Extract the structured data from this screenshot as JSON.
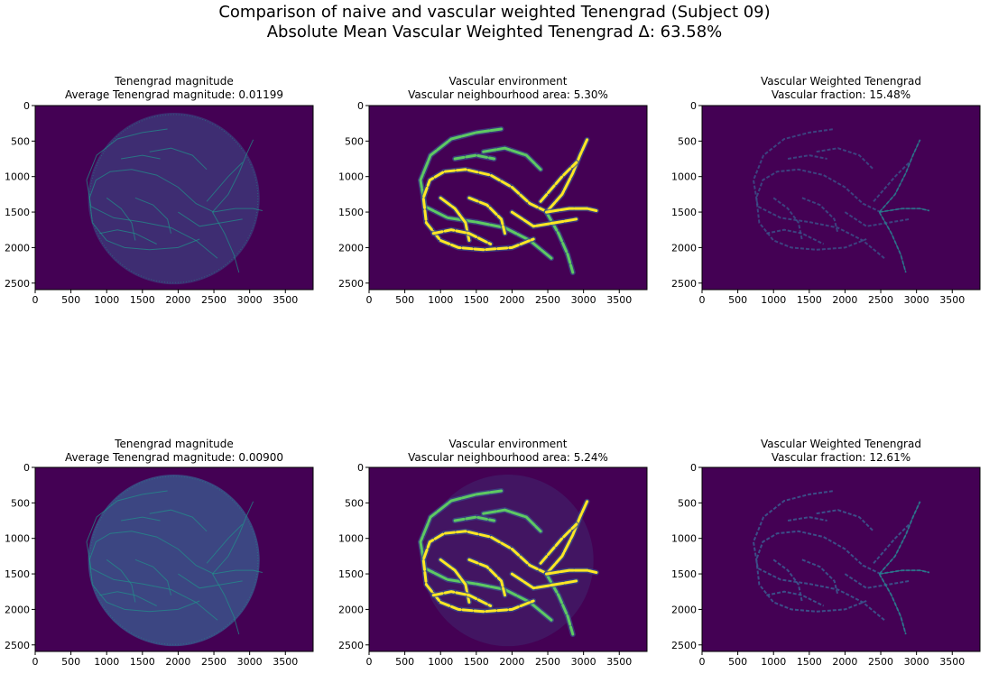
{
  "suptitle": {
    "line1": "Comparison of naive and vascular weighted Tenengrad (Subject 09)",
    "line2": "Absolute Mean Vascular Weighted Tenengrad Δ: 63.58%"
  },
  "colors": {
    "background": "#440154",
    "low": "#3b528b",
    "mid": "#21918c",
    "high": "#5ec962",
    "peak": "#fde725"
  },
  "chart_data": [
    {
      "type": "heatmap",
      "row": 0,
      "col": 0,
      "kind": "tenengrad",
      "title": "Tenengrad magnitude",
      "subtitle": "Average Tenengrad magnitude: 0.01199",
      "xlim": [
        0,
        3888
      ],
      "ylim": [
        2592,
        0
      ],
      "xticks": [
        0,
        500,
        1000,
        1500,
        2000,
        2500,
        3000,
        3500
      ],
      "yticks": [
        0,
        500,
        1000,
        1500,
        2000,
        2500
      ]
    },
    {
      "type": "heatmap",
      "row": 0,
      "col": 1,
      "kind": "environment",
      "title": "Vascular environment",
      "subtitle": "Vascular neighbourhood area: 5.30%",
      "xlim": [
        0,
        3888
      ],
      "ylim": [
        2592,
        0
      ],
      "xticks": [
        0,
        500,
        1000,
        1500,
        2000,
        2500,
        3000,
        3500
      ],
      "yticks": [
        0,
        500,
        1000,
        1500,
        2000,
        2500
      ]
    },
    {
      "type": "heatmap",
      "row": 0,
      "col": 2,
      "kind": "weighted",
      "title": "Vascular Weighted Tenengrad",
      "subtitle": "Vascular fraction: 15.48%",
      "xlim": [
        0,
        3888
      ],
      "ylim": [
        2592,
        0
      ],
      "xticks": [
        0,
        500,
        1000,
        1500,
        2000,
        2500,
        3000,
        3500
      ],
      "yticks": [
        0,
        500,
        1000,
        1500,
        2000,
        2500
      ]
    },
    {
      "type": "heatmap",
      "row": 1,
      "col": 0,
      "kind": "tenengrad",
      "title": "Tenengrad magnitude",
      "subtitle": "Average Tenengrad magnitude: 0.00900",
      "xlim": [
        0,
        3888
      ],
      "ylim": [
        2592,
        0
      ],
      "xticks": [
        0,
        500,
        1000,
        1500,
        2000,
        2500,
        3000,
        3500
      ],
      "yticks": [
        0,
        500,
        1000,
        1500,
        2000,
        2500
      ]
    },
    {
      "type": "heatmap",
      "row": 1,
      "col": 1,
      "kind": "environment",
      "title": "Vascular environment",
      "subtitle": "Vascular neighbourhood area: 5.24%",
      "xlim": [
        0,
        3888
      ],
      "ylim": [
        2592,
        0
      ],
      "xticks": [
        0,
        500,
        1000,
        1500,
        2000,
        2500,
        3000,
        3500
      ],
      "yticks": [
        0,
        500,
        1000,
        1500,
        2000,
        2500
      ]
    },
    {
      "type": "heatmap",
      "row": 1,
      "col": 2,
      "kind": "weighted",
      "title": "Vascular Weighted Tenengrad",
      "subtitle": "Vascular fraction: 12.61%",
      "xlim": [
        0,
        3888
      ],
      "ylim": [
        2592,
        0
      ],
      "xticks": [
        0,
        500,
        1000,
        1500,
        2000,
        2500,
        3000,
        3500
      ],
      "yticks": [
        0,
        500,
        1000,
        1500,
        2000,
        2500
      ]
    }
  ]
}
